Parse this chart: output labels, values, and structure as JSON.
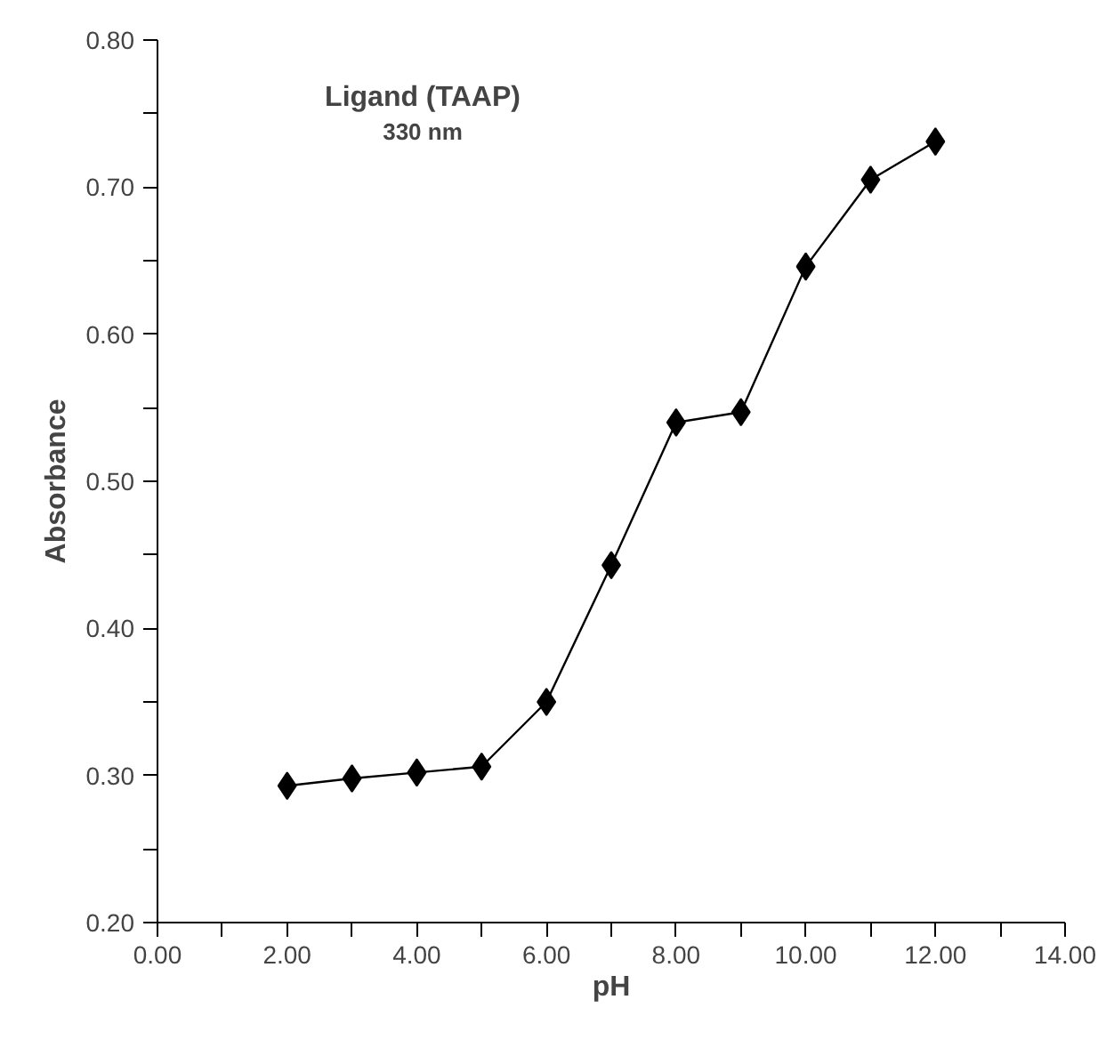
{
  "chart_data": {
    "type": "line",
    "title": "Ligand (TAAP)",
    "subtitle": "330 nm",
    "xlabel": "pH",
    "ylabel": "Absorbance",
    "x": [
      2,
      3,
      4,
      5,
      6,
      7,
      8,
      9,
      10,
      11,
      12
    ],
    "series": [
      {
        "color": "#000000",
        "values": [
          0.293,
          0.298,
          0.302,
          0.306,
          0.35,
          0.443,
          0.54,
          0.547,
          0.646,
          0.705,
          0.731
        ]
      }
    ],
    "xlim": [
      0,
      14
    ],
    "xticks": [
      {
        "value": 0,
        "label": "0.00"
      },
      {
        "value": 1,
        "label": null
      },
      {
        "value": 2,
        "label": "2.00"
      },
      {
        "value": 3,
        "label": null
      },
      {
        "value": 4,
        "label": "4.00"
      },
      {
        "value": 5,
        "label": null
      },
      {
        "value": 6,
        "label": "6.00"
      },
      {
        "value": 7,
        "label": null
      },
      {
        "value": 8,
        "label": "8.00"
      },
      {
        "value": 9,
        "label": null
      },
      {
        "value": 10,
        "label": "10.00"
      },
      {
        "value": 11,
        "label": null
      },
      {
        "value": 12,
        "label": "12.00"
      },
      {
        "value": 13,
        "label": null
      },
      {
        "value": 14,
        "label": "14.00"
      }
    ],
    "ylim": [
      0.2,
      0.8
    ],
    "yticks": [
      {
        "value": 0.2,
        "label": "0.20"
      },
      {
        "value": 0.25,
        "label": null
      },
      {
        "value": 0.3,
        "label": "0.30"
      },
      {
        "value": 0.35,
        "label": null
      },
      {
        "value": 0.4,
        "label": "0.40"
      },
      {
        "value": 0.45,
        "label": null
      },
      {
        "value": 0.5,
        "label": "0.50"
      },
      {
        "value": 0.55,
        "label": null
      },
      {
        "value": 0.6,
        "label": "0.60"
      },
      {
        "value": 0.65,
        "label": null
      },
      {
        "value": 0.7,
        "label": "0.70"
      },
      {
        "value": 0.75,
        "label": null
      },
      {
        "value": 0.8,
        "label": "0.80"
      }
    ],
    "grid": false,
    "marker": "diamond",
    "line_style": "solid"
  }
}
